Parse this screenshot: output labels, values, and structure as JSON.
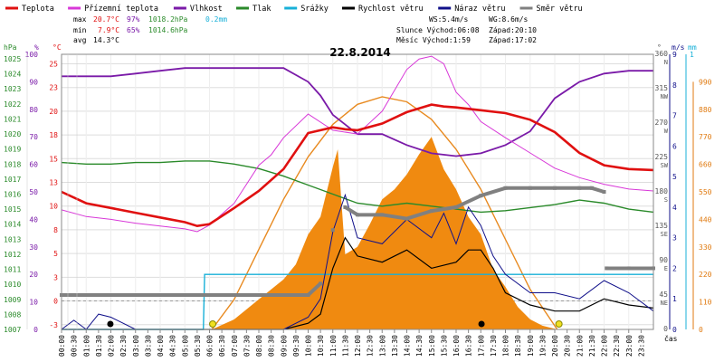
{
  "chart_data": {
    "type": "line",
    "title": "22.8.2014",
    "legend": [
      {
        "label": "Teplota",
        "color": "#e01010"
      },
      {
        "label": "Přízemní teplota",
        "color": "#d838d8"
      },
      {
        "label": "Vlhkost",
        "color": "#7a1aa8"
      },
      {
        "label": "Tlak",
        "color": "#2a8a2a"
      },
      {
        "label": "Srážky",
        "color": "#18b0d8"
      },
      {
        "label": "Rychlost větru",
        "color": "#000000"
      },
      {
        "label": "Náraz větru",
        "color": "#10108a"
      },
      {
        "label": "Směr větru",
        "color": "#808080"
      }
    ],
    "stats": {
      "max_label": "max",
      "max_temp": "20.7°C",
      "max_hum": "97%",
      "max_press": "1018.2hPa",
      "max_rain": "0.2mm",
      "min_label": "min",
      "min_temp": "7.9°C",
      "min_hum": "65%",
      "min_press": "1014.6hPa",
      "avg_label": "avg",
      "avg_temp": "14.3°C"
    },
    "wind_info": {
      "ws": "WS:5.4m/s",
      "wg": "WG:8.6m/s"
    },
    "sun_info": {
      "text": "Slunce Východ:06:08",
      "set": "Západ:20:10"
    },
    "moon_info": {
      "text": "Měsíc Východ:1:59",
      "set": "Západ:17:02"
    },
    "axis_left": {
      "hpa_label": "hPa",
      "hum_label": "%",
      "temp_label": "°C",
      "hpa_ticks": [
        "1025",
        "1024",
        "1023",
        "1022",
        "1021",
        "1020",
        "1019",
        "1018",
        "1017",
        "1016",
        "1015",
        "1014",
        "1013",
        "1012",
        "1011",
        "1010",
        "1009",
        "1008",
        "1007"
      ],
      "hum_ticks": [
        "100",
        "90",
        "80",
        "70",
        "60",
        "50",
        "40",
        "30",
        "20",
        "10",
        "0"
      ],
      "temp_ticks": [
        "25",
        "23",
        "20",
        "18",
        "15",
        "13",
        "10",
        "8",
        "5",
        "3",
        "0",
        "-3"
      ]
    },
    "axis_right": {
      "deg_label": "°",
      "ms_label": "m/s",
      "mm_label": "mm",
      "dir_ticks": [
        "360",
        "315",
        "270",
        "225",
        "180",
        "135",
        "90",
        "45",
        "0"
      ],
      "dir_names": [
        "N",
        "NW",
        "W",
        "SW",
        "S",
        "SE",
        "E",
        "NE"
      ],
      "ms_ticks": [
        "9",
        "8",
        "7",
        "6",
        "5",
        "4",
        "3",
        "2",
        "1",
        "0"
      ],
      "mm_top": "1",
      "solar_ticks": [
        "990",
        "880",
        "770",
        "660",
        "550",
        "440",
        "330",
        "220",
        "110",
        "0"
      ]
    },
    "x_ticks": [
      "00:00",
      "00:30",
      "01:00",
      "01:30",
      "02:00",
      "02:30",
      "03:00",
      "03:30",
      "04:00",
      "04:30",
      "05:00",
      "05:30",
      "06:00",
      "06:30",
      "07:00",
      "07:30",
      "08:00",
      "08:30",
      "09:00",
      "09:30",
      "10:00",
      "10:30",
      "11:00",
      "11:30",
      "12:00",
      "12:30",
      "13:00",
      "13:30",
      "14:00",
      "14:30",
      "15:00",
      "15:30",
      "16:00",
      "16:30",
      "17:00",
      "17:30",
      "18:00",
      "18:30",
      "19:00",
      "19:30",
      "20:00",
      "20:30",
      "21:00",
      "21:30",
      "22:00",
      "22:30",
      "23:00",
      "23:30"
    ],
    "x_unit": "čas",
    "series": {
      "temperature": {
        "x": [
          0,
          1,
          2,
          3,
          4,
          5,
          5.5,
          6,
          7,
          8,
          9,
          10,
          11,
          11.5,
          12,
          13,
          14,
          14.5,
          15,
          15.5,
          16,
          17,
          18,
          19,
          20,
          21,
          22,
          23,
          24
        ],
        "y": [
          11.5,
          10.3,
          9.8,
          9.3,
          8.8,
          8.3,
          7.9,
          8.1,
          9.8,
          11.6,
          13.9,
          17.7,
          18.3,
          18.1,
          18.0,
          18.7,
          19.9,
          20.3,
          20.7,
          20.5,
          20.4,
          20.1,
          19.8,
          19.1,
          17.8,
          15.6,
          14.3,
          13.9,
          13.8
        ]
      },
      "ground_temperature": {
        "x": [
          0,
          1,
          2,
          3,
          4,
          5,
          5.5,
          6,
          7,
          8,
          8.5,
          9,
          10,
          11,
          12,
          13,
          14,
          14.5,
          15,
          15.5,
          16,
          16.5,
          17,
          18,
          19,
          20,
          21,
          22,
          23,
          24
        ],
        "y": [
          9.6,
          8.9,
          8.6,
          8.2,
          7.9,
          7.6,
          7.3,
          8.0,
          10.3,
          14.3,
          15.4,
          17.2,
          19.7,
          18.0,
          17.6,
          20.0,
          24.4,
          25.5,
          25.8,
          25.0,
          22.0,
          20.7,
          18.9,
          17.2,
          15.6,
          14.0,
          13.0,
          12.3,
          11.8,
          11.6
        ]
      },
      "humidity": {
        "x": [
          0,
          2,
          3,
          4,
          5,
          9,
          10,
          10.5,
          11,
          12,
          13,
          14,
          15,
          16,
          17,
          18,
          19,
          20,
          21,
          22,
          23,
          24
        ],
        "y": [
          92,
          92,
          93,
          94,
          95,
          95,
          90,
          85,
          78,
          71,
          71,
          67,
          64,
          63,
          64,
          67,
          72,
          84,
          90,
          93,
          94,
          94
        ]
      },
      "pressure": {
        "x": [
          0,
          1,
          2,
          3,
          4,
          5,
          6,
          7,
          8,
          9,
          10,
          11,
          12,
          13,
          14,
          15,
          16,
          17,
          18,
          19,
          20,
          21,
          22,
          23,
          24
        ],
        "y": [
          1018.1,
          1018.0,
          1018.0,
          1018.1,
          1018.1,
          1018.2,
          1018.2,
          1018.0,
          1017.7,
          1017.2,
          1016.6,
          1016.0,
          1015.4,
          1015.2,
          1015.4,
          1015.2,
          1015.0,
          1014.8,
          1014.9,
          1015.1,
          1015.3,
          1015.6,
          1015.4,
          1015.0,
          1014.8
        ]
      },
      "rain_mm": {
        "x": [
          0,
          5.75,
          5.8,
          24
        ],
        "y": [
          0,
          0,
          0.2,
          0.2
        ]
      },
      "wind_speed_avg": {
        "x": [
          0,
          1,
          2,
          3,
          4,
          5,
          6,
          7,
          8,
          9,
          10,
          10.5,
          11,
          11.5,
          12,
          13,
          14,
          15,
          16,
          16.5,
          17,
          17.5,
          18,
          19,
          20,
          21,
          22,
          23,
          24
        ],
        "y": [
          0,
          0,
          0,
          0,
          0,
          0,
          0,
          0,
          0,
          0,
          0.2,
          0.5,
          2.0,
          3.0,
          2.4,
          2.2,
          2.6,
          2.0,
          2.2,
          2.6,
          2.6,
          2.0,
          1.2,
          0.8,
          0.6,
          0.6,
          1.0,
          0.8,
          0.7
        ]
      },
      "wind_gust": {
        "x": [
          0,
          0.5,
          1,
          1.5,
          2,
          3,
          4,
          5,
          6,
          7,
          8,
          9,
          10,
          10.5,
          11,
          11.5,
          12,
          13,
          14,
          15,
          15.5,
          16,
          16.5,
          17,
          17.5,
          18,
          19,
          20,
          21,
          22,
          23,
          24
        ],
        "y": [
          0,
          0.3,
          0,
          0.5,
          0.4,
          0,
          0,
          0,
          0,
          0,
          0,
          0,
          0.4,
          1.0,
          3.2,
          4.4,
          3.0,
          2.8,
          3.6,
          3.0,
          3.8,
          2.8,
          4.0,
          3.4,
          2.4,
          1.8,
          1.2,
          1.2,
          1.0,
          1.6,
          1.2,
          0.6
        ]
      },
      "wind_direction": {
        "x": [
          0,
          2,
          4,
          6,
          8,
          10,
          10.5,
          11,
          11.5,
          12,
          13,
          14,
          15,
          16,
          17,
          18,
          19,
          20,
          21,
          21.5,
          22,
          22.1,
          23,
          24
        ],
        "y": [
          45,
          45,
          45,
          45,
          45,
          45,
          60,
          130,
          160,
          150,
          150,
          145,
          155,
          160,
          175,
          185,
          185,
          185,
          185,
          185,
          180,
          80,
          80,
          80
        ]
      },
      "solar_radiation": {
        "x": [
          6.1,
          7,
          8,
          9,
          9.5,
          10,
          10.5,
          11,
          11.2,
          11.5,
          12,
          12.5,
          13,
          13.5,
          14,
          14.5,
          15,
          15.5,
          16,
          16.5,
          17,
          17.5,
          18,
          18.5,
          19,
          19.5,
          20.1
        ],
        "y": [
          0,
          40,
          120,
          200,
          260,
          380,
          450,
          650,
          720,
          300,
          330,
          420,
          520,
          560,
          620,
          700,
          770,
          640,
          560,
          450,
          380,
          240,
          170,
          90,
          40,
          15,
          0
        ]
      },
      "solar_theory": {
        "x": [
          6.1,
          7,
          8,
          9,
          10,
          11,
          12,
          13,
          14,
          15,
          16,
          17,
          18,
          19,
          20.1
        ],
        "y": [
          0,
          120,
          320,
          520,
          690,
          820,
          900,
          930,
          910,
          840,
          720,
          560,
          360,
          160,
          0
        ]
      },
      "sunrise": 6.13,
      "sunset": 20.17,
      "moonrise": 1.98,
      "moonset": 17.03
    },
    "ranges": {
      "temp": [
        -3,
        26
      ],
      "hum": [
        0,
        100
      ],
      "press": [
        1007,
        1025.3
      ],
      "wind": [
        0,
        9
      ],
      "dir": [
        0,
        360
      ],
      "rain": [
        0,
        1
      ],
      "solar": [
        0,
        1100
      ],
      "hours": [
        0,
        24
      ]
    }
  }
}
